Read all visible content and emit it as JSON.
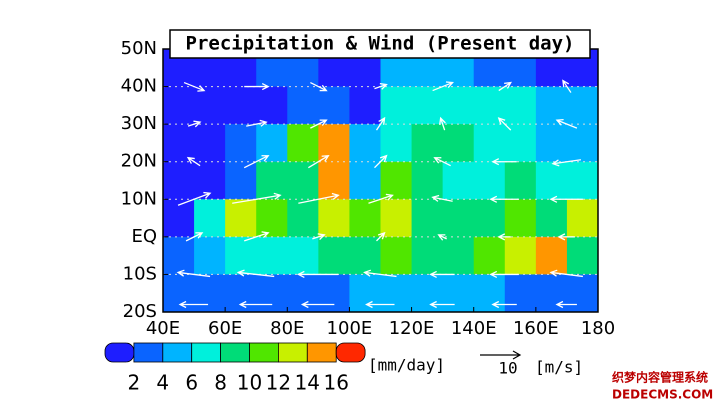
{
  "chart_data": {
    "type": "vector-map",
    "title": "Precipitation & Wind (Present day)",
    "xlim": [
      40,
      180
    ],
    "ylim": [
      -20,
      50
    ],
    "grid": true,
    "xticks": [
      {
        "value": 40,
        "label": "40E"
      },
      {
        "value": 60,
        "label": "60E"
      },
      {
        "value": 80,
        "label": "80E"
      },
      {
        "value": 100,
        "label": "100E"
      },
      {
        "value": 120,
        "label": "120E"
      },
      {
        "value": 140,
        "label": "140E"
      },
      {
        "value": 160,
        "label": "160E"
      },
      {
        "value": 180,
        "label": "180"
      }
    ],
    "yticks": [
      {
        "value": -20,
        "label": "20S"
      },
      {
        "value": -10,
        "label": "10S"
      },
      {
        "value": 0,
        "label": "EQ"
      },
      {
        "value": 10,
        "label": "10N"
      },
      {
        "value": 20,
        "label": "20N"
      },
      {
        "value": 30,
        "label": "30N"
      },
      {
        "value": 40,
        "label": "40N"
      },
      {
        "value": 50,
        "label": "50N"
      }
    ],
    "precip": {
      "lon": [
        45,
        55,
        65,
        75,
        85,
        95,
        105,
        115,
        125,
        135,
        145,
        155,
        165,
        175
      ],
      "lat": [
        45,
        35,
        25,
        15,
        5,
        -5,
        -15
      ],
      "values": [
        [
          1,
          1,
          1,
          3,
          3,
          1,
          1,
          4,
          5,
          4,
          3,
          3,
          1,
          1
        ],
        [
          1,
          1,
          1,
          1,
          3,
          3,
          1,
          6,
          7,
          6,
          6,
          6,
          5,
          4
        ],
        [
          1,
          1,
          3,
          5,
          10,
          15,
          5,
          7,
          8,
          8,
          7,
          6,
          5,
          5
        ],
        [
          1,
          1,
          3,
          8,
          9,
          14,
          4,
          10,
          8,
          7,
          7,
          8,
          7,
          6
        ],
        [
          1,
          6,
          12,
          10,
          9,
          12,
          10,
          12,
          9,
          9,
          9,
          10,
          9,
          12
        ],
        [
          3,
          5,
          7,
          6,
          6,
          9,
          9,
          10,
          8,
          9,
          11,
          13,
          14,
          9
        ],
        [
          3,
          3,
          3,
          3,
          3,
          3,
          4,
          5,
          4,
          4,
          4,
          3,
          3,
          3
        ]
      ]
    },
    "wind": {
      "lon": [
        50,
        70,
        90,
        110,
        130,
        150,
        170
      ],
      "lat": [
        40,
        30,
        20,
        10,
        0,
        -10,
        -18
      ],
      "u": [
        [
          5,
          6,
          4,
          3,
          5,
          3,
          -2
        ],
        [
          3,
          5,
          4,
          2,
          -1,
          -3,
          -5
        ],
        [
          -3,
          6,
          5,
          3,
          -4,
          -6,
          -7
        ],
        [
          8,
          12,
          10,
          6,
          -5,
          -7,
          -8
        ],
        [
          4,
          6,
          3,
          2,
          -2,
          -3,
          -4
        ],
        [
          -8,
          -9,
          -10,
          -8,
          -6,
          -7,
          -8
        ],
        [
          -7,
          -8,
          -8,
          -7,
          -6,
          -6,
          -5
        ]
      ],
      "v": [
        [
          -2,
          0,
          -2,
          1,
          2,
          2,
          3
        ],
        [
          1,
          1,
          2,
          3,
          3,
          3,
          2
        ],
        [
          2,
          3,
          3,
          3,
          2,
          0,
          -1
        ],
        [
          3,
          2,
          2,
          2,
          1,
          0,
          0
        ],
        [
          2,
          2,
          1,
          2,
          1,
          0,
          0
        ],
        [
          1,
          1,
          0,
          1,
          0,
          0,
          1
        ],
        [
          0,
          0,
          0,
          0,
          0,
          0,
          0
        ]
      ],
      "color": "#ffffff"
    },
    "colorbar": {
      "ticks": [
        2,
        4,
        6,
        8,
        10,
        12,
        14,
        16
      ],
      "unit": "[mm/day]",
      "colors": [
        "#1e1eff",
        "#0a64ff",
        "#00b4ff",
        "#00f0dc",
        "#00dc78",
        "#50e600",
        "#c8f000",
        "#ff9600",
        "#ff2800"
      ]
    },
    "reference_vector": {
      "value": 10,
      "unit": "[m/s]"
    }
  },
  "watermark": {
    "line1": "织梦内容管理系统",
    "line2": "DEDECMS.COM"
  }
}
